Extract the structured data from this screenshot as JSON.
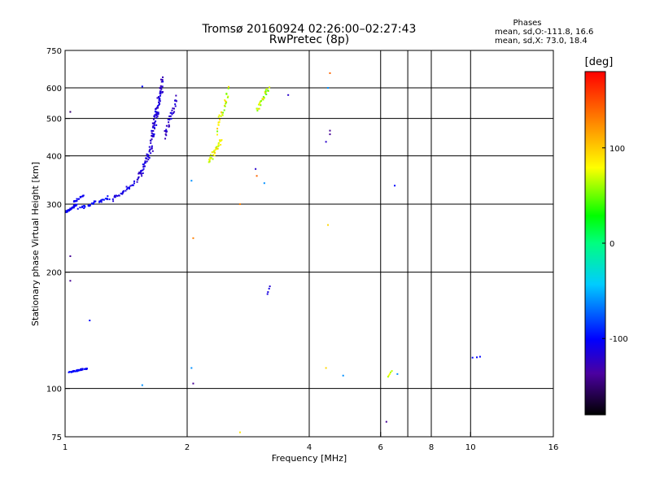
{
  "chart_data": {
    "type": "scatter",
    "title": "Tromsø 20160924 02:26:00–02:27:43",
    "subtitle": "RwPretec (8p)",
    "xlabel": "Frequency [MHz]",
    "ylabel": "Stationary phase Virtual Height [km]",
    "x_scale": "log",
    "y_scale": "log",
    "xlim": [
      1,
      16
    ],
    "ylim": [
      75,
      750
    ],
    "x_ticks": [
      1,
      2,
      4,
      6,
      8,
      10,
      16
    ],
    "x_gridlines": [
      2,
      4,
      6,
      7,
      8,
      10
    ],
    "y_ticks": [
      75,
      100,
      200,
      300,
      400,
      500,
      600,
      750
    ],
    "y_gridlines": [
      100,
      200,
      300,
      400,
      500,
      600
    ],
    "grid": true,
    "phase_stats": {
      "header": "Phases",
      "line_o": "mean, sd,O:-111.8, 16.6",
      "line_x": "mean, sd,X:  73.0, 18.4"
    },
    "colorbar": {
      "title": "[deg]",
      "ticks": [
        {
          "value": 100,
          "label": "100"
        },
        {
          "value": 0,
          "label": "0"
        },
        {
          "value": -100,
          "label": "-100"
        }
      ],
      "range": [
        -180,
        180
      ],
      "colormap": "rainbow"
    },
    "clusters": [
      {
        "name": "",
        "x": [
          1.0,
          1.07
        ],
        "y": [
          285,
          300
        ],
        "phase": [
          -115,
          -100
        ],
        "n": 40
      },
      {
        "name": "",
        "x": [
          1.07,
          1.3
        ],
        "y": [
          290,
          315
        ],
        "phase": [
          -110,
          -95
        ],
        "n": 35
      },
      {
        "name": "",
        "x": [
          1.04,
          1.12
        ],
        "y": [
          302,
          318
        ],
        "phase": [
          -110,
          -100
        ],
        "n": 14
      },
      {
        "name": "",
        "x": [
          1.3,
          1.5
        ],
        "y": [
          305,
          345
        ],
        "phase": [
          -120,
          -105
        ],
        "n": 30
      },
      {
        "name": "",
        "x": [
          1.5,
          1.65
        ],
        "y": [
          340,
          430
        ],
        "phase": [
          -125,
          -105
        ],
        "n": 45
      },
      {
        "name": "",
        "x": [
          1.62,
          1.75
        ],
        "y": [
          420,
          650
        ],
        "phase": [
          -130,
          -105
        ],
        "n": 90
      },
      {
        "name": "",
        "x": [
          1.75,
          1.9
        ],
        "y": [
          440,
          580
        ],
        "phase": [
          -130,
          -110
        ],
        "n": 35
      },
      {
        "name": "",
        "x": [
          2.25,
          2.45
        ],
        "y": [
          380,
          450
        ],
        "phase": [
          60,
          100
        ],
        "n": 35
      },
      {
        "name": "",
        "x": [
          2.35,
          2.55
        ],
        "y": [
          450,
          610
        ],
        "phase": [
          50,
          110
        ],
        "n": 30
      },
      {
        "name": "",
        "x": [
          2.95,
          3.2
        ],
        "y": [
          515,
          610
        ],
        "phase": [
          40,
          100
        ],
        "n": 30
      },
      {
        "name": "",
        "x": [
          1.02,
          1.14
        ],
        "y": [
          110,
          113
        ],
        "phase": [
          -110,
          -95
        ],
        "n": 40
      },
      {
        "name": "",
        "x": [
          6.25,
          6.4
        ],
        "y": [
          107,
          111
        ],
        "phase": [
          60,
          90
        ],
        "n": 5
      },
      {
        "name": "",
        "x": [
          3.15,
          3.2
        ],
        "y": [
          175,
          185
        ],
        "phase": [
          -120,
          -110
        ],
        "n": 4
      },
      {
        "name": "",
        "x": [
          10.1,
          10.6
        ],
        "y": [
          120,
          121
        ],
        "phase": [
          -100,
          -100
        ],
        "n": 3
      }
    ],
    "scatter_points": [
      {
        "x": 1.03,
        "y": 520,
        "phase": -150
      },
      {
        "x": 1.03,
        "y": 220,
        "phase": -140
      },
      {
        "x": 1.03,
        "y": 190,
        "phase": -140
      },
      {
        "x": 1.15,
        "y": 150,
        "phase": -100
      },
      {
        "x": 1.55,
        "y": 605,
        "phase": -100
      },
      {
        "x": 1.55,
        "y": 102,
        "phase": -60
      },
      {
        "x": 2.05,
        "y": 345,
        "phase": -60
      },
      {
        "x": 2.05,
        "y": 113,
        "phase": -60
      },
      {
        "x": 2.07,
        "y": 103,
        "phase": -140
      },
      {
        "x": 2.07,
        "y": 245,
        "phase": 130
      },
      {
        "x": 2.7,
        "y": 300,
        "phase": 130
      },
      {
        "x": 2.95,
        "y": 370,
        "phase": -120
      },
      {
        "x": 2.97,
        "y": 355,
        "phase": 140
      },
      {
        "x": 3.1,
        "y": 340,
        "phase": -60
      },
      {
        "x": 3.55,
        "y": 575,
        "phase": -120
      },
      {
        "x": 2.7,
        "y": 77,
        "phase": 90
      },
      {
        "x": 4.4,
        "y": 435,
        "phase": -120
      },
      {
        "x": 4.5,
        "y": 465,
        "phase": -140
      },
      {
        "x": 4.5,
        "y": 455,
        "phase": -140
      },
      {
        "x": 4.45,
        "y": 600,
        "phase": -60
      },
      {
        "x": 4.5,
        "y": 655,
        "phase": 140
      },
      {
        "x": 4.45,
        "y": 265,
        "phase": 95
      },
      {
        "x": 4.4,
        "y": 113,
        "phase": 95
      },
      {
        "x": 4.85,
        "y": 108,
        "phase": -60
      },
      {
        "x": 6.2,
        "y": 82,
        "phase": -140
      },
      {
        "x": 6.5,
        "y": 335,
        "phase": -100
      },
      {
        "x": 6.6,
        "y": 109,
        "phase": -60
      }
    ]
  }
}
